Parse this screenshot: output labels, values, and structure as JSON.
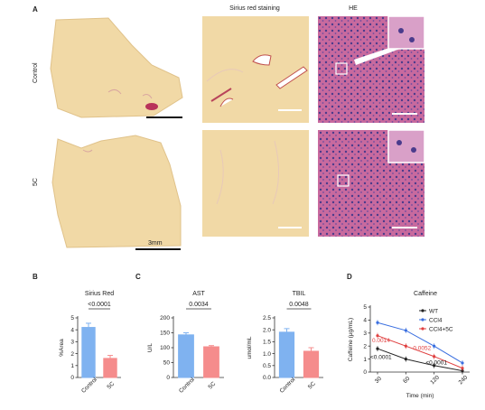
{
  "figure": {
    "panel_labels": [
      "A",
      "B",
      "C",
      "D"
    ],
    "panel_a": {
      "column_headers": [
        "Sirius red staining",
        "HE"
      ],
      "row_labels": [
        "Control",
        "5C"
      ],
      "scale_label": "3mm"
    }
  },
  "colors": {
    "control_bar": "#7fb2f0",
    "fiveC_bar": "#f58c8c",
    "wt": "#222222",
    "ccl4": "#3a6fe0",
    "ccl4_5c": "#e04040",
    "tissue": "#f1d9a6",
    "he_pink": "#c86a9e"
  },
  "chart_data": [
    {
      "type": "bar",
      "title": "Sirius Red",
      "ylabel": "%Area",
      "categories": [
        "Control",
        "5C"
      ],
      "values": [
        4.2,
        1.6
      ],
      "errors": [
        0.35,
        0.25
      ],
      "ylim": [
        0,
        5
      ],
      "yticks": [
        "0",
        "1",
        "2",
        "3",
        "4",
        "5"
      ],
      "pvalue": "<0.0001"
    },
    {
      "type": "bar",
      "title": "AST",
      "ylabel": "U/L",
      "categories": [
        "Control",
        "5C"
      ],
      "values": [
        143,
        103
      ],
      "errors": [
        7,
        4
      ],
      "ylim": [
        0,
        200
      ],
      "yticks": [
        "0",
        "50",
        "100",
        "150",
        "200"
      ],
      "pvalue": "0.0034"
    },
    {
      "type": "bar",
      "title": "TBIL",
      "ylabel": "umol/mL",
      "categories": [
        "Control",
        "5C"
      ],
      "values": [
        1.9,
        1.1
      ],
      "errors": [
        0.15,
        0.15
      ],
      "ylim": [
        0,
        2.5
      ],
      "yticks": [
        "0.0",
        "0.5",
        "1.0",
        "1.5",
        "2.0",
        "2.5"
      ],
      "pvalue": "0.0048"
    },
    {
      "type": "line",
      "title": "Caffeine",
      "xlabel": "Time (min)",
      "ylabel": "Caffeine (μg/mL)",
      "x": [
        30,
        60,
        120,
        240
      ],
      "xticks": [
        "30",
        "60",
        "120",
        "240"
      ],
      "ylim": [
        0,
        5
      ],
      "yticks": [
        "0",
        "1",
        "2",
        "3",
        "4",
        "5"
      ],
      "legend": "top-right",
      "series": [
        {
          "name": "WT",
          "values": [
            1.8,
            1.0,
            0.5,
            0.1
          ]
        },
        {
          "name": "CCl4",
          "values": [
            3.8,
            3.2,
            2.0,
            0.7
          ]
        },
        {
          "name": "CCl4+5C",
          "values": [
            2.8,
            2.0,
            1.2,
            0.3
          ]
        }
      ],
      "annotations": [
        {
          "text": "0.0014",
          "color": "red"
        },
        {
          "text": "0.0052",
          "color": "red"
        },
        {
          "text": "<0.0001",
          "color": "black"
        },
        {
          "text": "<0.0001",
          "color": "black"
        }
      ]
    }
  ]
}
